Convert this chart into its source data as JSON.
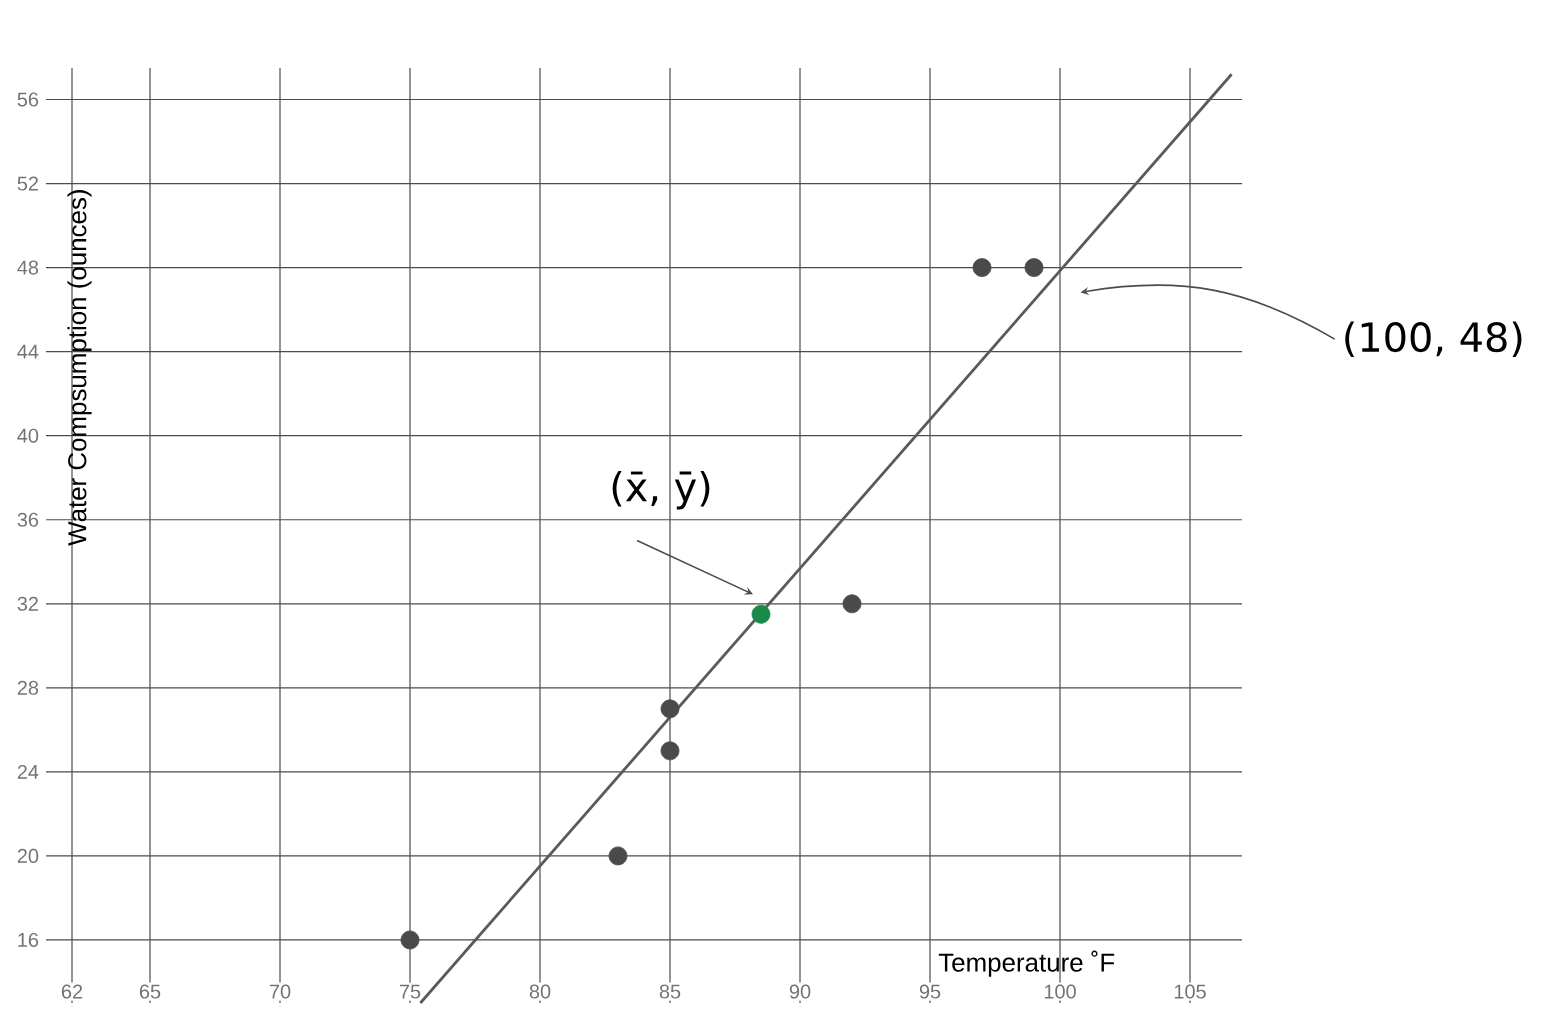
{
  "chart_data": {
    "type": "scatter",
    "xlabel": "Temperature ˚F",
    "ylabel": "Water Compsumption (ounces)",
    "xlim": [
      61,
      107
    ],
    "ylim": [
      13,
      57.5
    ],
    "xticks": [
      62,
      65,
      70,
      75,
      80,
      85,
      90,
      95,
      100,
      105
    ],
    "yticks": [
      16,
      20,
      24,
      28,
      32,
      36,
      40,
      44,
      48,
      52,
      56
    ],
    "grid": true,
    "marker": "circle",
    "series": [
      {
        "color": "#4a4a4a",
        "x": [
          75,
          83,
          85,
          85,
          92,
          97,
          99
        ],
        "values": [
          16,
          20,
          25,
          27,
          32,
          48,
          48
        ]
      },
      {
        "color": "#1a8a4a",
        "x": [
          88.5
        ],
        "values": [
          31.5
        ]
      },
      {
        "type": "line",
        "color": "#5a5a5a",
        "marker": "none",
        "x": [
          75.4,
          106.6
        ],
        "values": [
          13,
          57.2
        ]
      }
    ],
    "annotations": [
      {
        "text": "(x̄, ȳ)",
        "x": 88.5,
        "y": 31.5
      },
      "(100, 48)"
    ]
  }
}
